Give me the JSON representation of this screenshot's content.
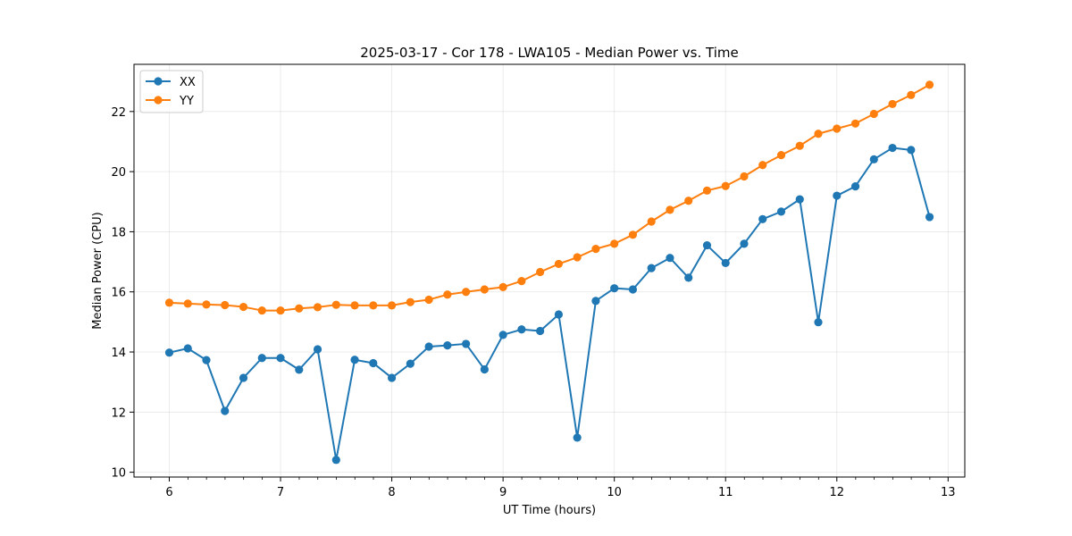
{
  "chart_data": {
    "type": "line",
    "title": "2025-03-17 - Cor 178 - LWA105 - Median Power vs. Time",
    "xlabel": "UT Time (hours)",
    "ylabel": "Median Power (CPU)",
    "xlim": [
      5.683,
      13.15
    ],
    "ylim": [
      9.84,
      23.57
    ],
    "x_ticks": [
      6,
      7,
      8,
      9,
      10,
      11,
      12,
      13
    ],
    "y_ticks": [
      10,
      12,
      14,
      16,
      18,
      20,
      22
    ],
    "x_minor_step": 0.1667,
    "grid": true,
    "legend_position": "top-left",
    "x": [
      6.0,
      6.1667,
      6.3333,
      6.5,
      6.6667,
      6.8333,
      7.0,
      7.1667,
      7.3333,
      7.5,
      7.6667,
      7.8333,
      8.0,
      8.1667,
      8.3333,
      8.5,
      8.6667,
      8.8333,
      9.0,
      9.1667,
      9.3333,
      9.5,
      9.6667,
      9.8333,
      10.0,
      10.1667,
      10.3333,
      10.5,
      10.6667,
      10.8333,
      11.0,
      11.1667,
      11.3333,
      11.5,
      11.6667,
      11.8333,
      12.0,
      12.1667,
      12.3333,
      12.5,
      12.6667,
      12.8333
    ],
    "series": [
      {
        "name": "XX",
        "color": "#1f77b4",
        "values": [
          13.98,
          14.12,
          13.73,
          12.04,
          13.14,
          13.8,
          13.8,
          13.41,
          14.09,
          10.41,
          13.74,
          13.63,
          13.14,
          13.61,
          14.18,
          14.22,
          14.27,
          13.42,
          14.57,
          14.75,
          14.7,
          15.25,
          11.15,
          15.7,
          16.12,
          16.08,
          16.79,
          17.13,
          16.47,
          17.55,
          16.96,
          17.6,
          18.42,
          18.67,
          19.08,
          14.99,
          19.2,
          19.51,
          20.41,
          20.79,
          20.72,
          18.49
        ]
      },
      {
        "name": "YY",
        "color": "#ff7f0e",
        "values": [
          15.64,
          15.61,
          15.58,
          15.56,
          15.5,
          15.38,
          15.38,
          15.45,
          15.49,
          15.57,
          15.55,
          15.55,
          15.55,
          15.66,
          15.74,
          15.91,
          16.0,
          16.08,
          16.16,
          16.36,
          16.66,
          16.93,
          17.15,
          17.43,
          17.6,
          17.9,
          18.34,
          18.73,
          19.03,
          19.37,
          19.52,
          19.84,
          20.22,
          20.55,
          20.86,
          21.26,
          21.43,
          21.6,
          21.92,
          22.25,
          22.55,
          22.89
        ]
      }
    ]
  }
}
